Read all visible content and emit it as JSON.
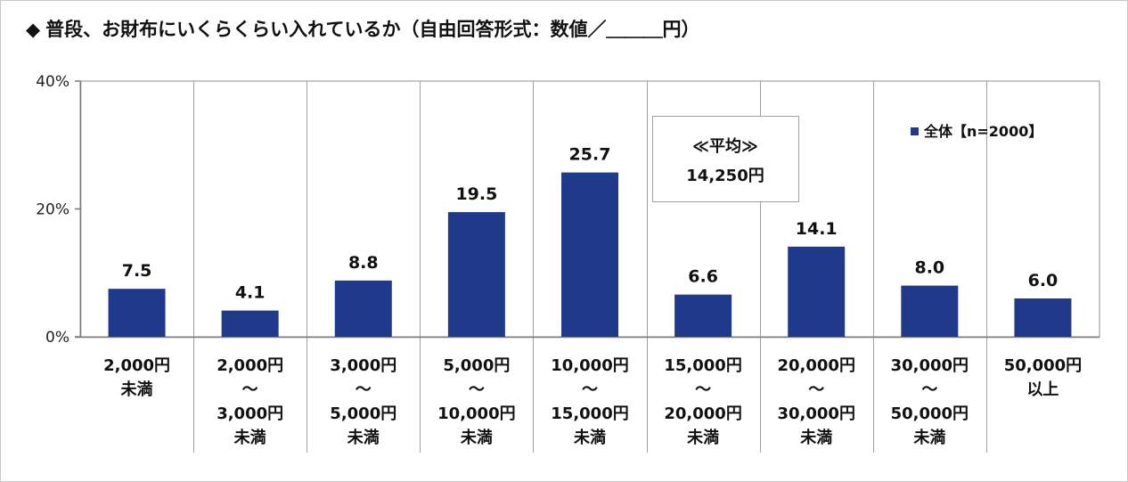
{
  "title": "普段、お財布にいくらくらい入れているか（自由回答形式：数値／＿＿＿円）",
  "title_marker": "◆",
  "average_box": {
    "line1": "≪平均≫",
    "line2": "14,250円"
  },
  "chart_data": {
    "type": "bar",
    "title": "普段、お財布にいくらくらい入れているか（自由回答形式：数値／＿＿＿円）",
    "xlabel": "",
    "ylabel": "",
    "ylim": [
      0,
      40
    ],
    "yticks": [
      0,
      20,
      40
    ],
    "ytick_labels": [
      "0%",
      "20%",
      "40%"
    ],
    "grid": false,
    "legend_position": "top-right",
    "categories": [
      [
        "2,000円",
        "未満"
      ],
      [
        "2,000円",
        "～",
        "3,000円",
        "未満"
      ],
      [
        "3,000円",
        "～",
        "5,000円",
        "未満"
      ],
      [
        "5,000円",
        "～",
        "10,000円",
        "未満"
      ],
      [
        "10,000円",
        "～",
        "15,000円",
        "未満"
      ],
      [
        "15,000円",
        "～",
        "20,000円",
        "未満"
      ],
      [
        "20,000円",
        "～",
        "30,000円",
        "未満"
      ],
      [
        "30,000円",
        "～",
        "50,000円",
        "未満"
      ],
      [
        "50,000円",
        "以上"
      ]
    ],
    "series": [
      {
        "name": "全体【n=2000】",
        "color": "#1f3a8a",
        "values": [
          7.5,
          4.1,
          8.8,
          19.5,
          25.7,
          6.6,
          14.1,
          8.0,
          6.0
        ],
        "value_labels": [
          "7.5",
          "4.1",
          "8.8",
          "19.5",
          "25.7",
          "6.6",
          "14.1",
          "8.0",
          "6.0"
        ]
      }
    ]
  }
}
